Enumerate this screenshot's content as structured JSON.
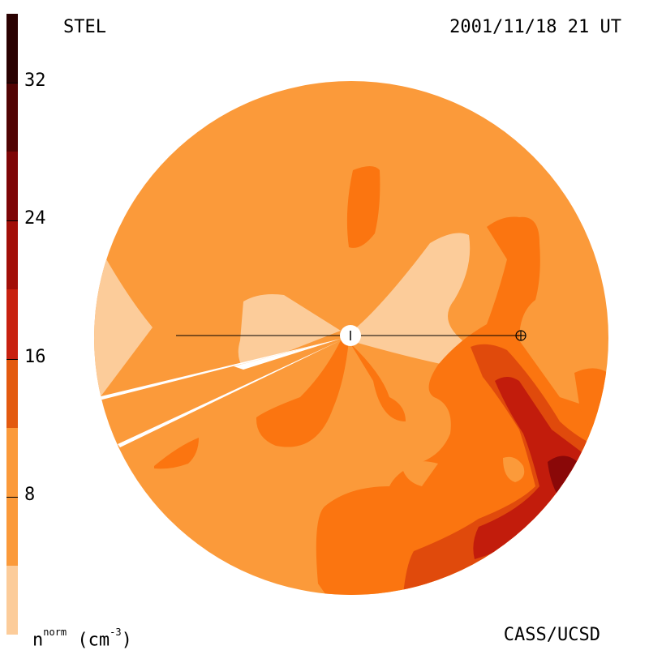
{
  "header": {
    "left_label": "STEL",
    "right_label": "2001/11/18 21 UT"
  },
  "footer": {
    "unit_main": "n",
    "unit_sup": "norm",
    "unit_paren": "(cm",
    "unit_exp": "-3",
    "unit_close": ")",
    "credit": "CASS/UCSD"
  },
  "colorbar": {
    "min": 0,
    "max": 36,
    "ticks": [
      {
        "value": 8,
        "label": "8"
      },
      {
        "value": 16,
        "label": "16"
      },
      {
        "value": 24,
        "label": "24"
      },
      {
        "value": 32,
        "label": "32"
      }
    ],
    "bands": [
      {
        "from": 0,
        "to": 4,
        "color": "#fccc9a"
      },
      {
        "from": 4,
        "to": 12,
        "color": "#fb9a3a"
      },
      {
        "from": 12,
        "to": 16,
        "color": "#e35a0f"
      },
      {
        "from": 16,
        "to": 20,
        "color": "#c8210f"
      },
      {
        "from": 20,
        "to": 24,
        "color": "#a20e08"
      },
      {
        "from": 24,
        "to": 28,
        "color": "#7e0506"
      },
      {
        "from": 28,
        "to": 32,
        "color": "#520303"
      },
      {
        "from": 32,
        "to": 36,
        "color": "#2a0101"
      }
    ]
  },
  "colors": {
    "level_low": "#fccc9a",
    "level_base": "#fb9a3a",
    "level_mid": "#fb7510",
    "level_high": "#e04a0c",
    "level_higher": "#c21c0c",
    "level_max": "#8a0808",
    "line": "#000000"
  },
  "markers": {
    "sun_icon": "circle-with-tick",
    "earth_icon": "circle-cross"
  }
}
